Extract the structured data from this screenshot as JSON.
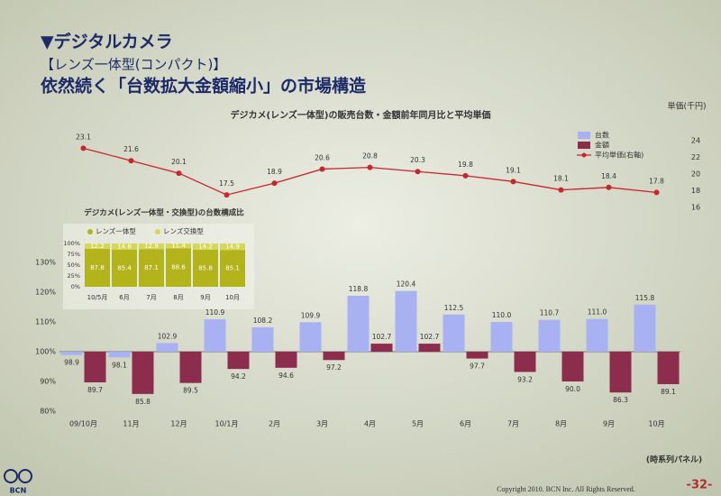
{
  "slide": {
    "title": "▼デジタルカメラ",
    "subtitle": "【レンズ一体型(コンパクト)】",
    "headline": "依然続く「台数拡大金額縮小」の市場構造",
    "note": "(時系列パネル)",
    "logo": "BCN",
    "copyright": "Copyright 2010. BCN Inc. All Rights Reserved.",
    "page": "-32-"
  },
  "chart_data": [
    {
      "type": "combo",
      "title": "デジカメ(レンズ一体型)の販売台数・金額前年同月比と平均単価",
      "y2label": "単価(千円)",
      "categories": [
        "09/10月",
        "11月",
        "12月",
        "10/1月",
        "2月",
        "3月",
        "4月",
        "5月",
        "6月",
        "7月",
        "8月",
        "9月",
        "10月"
      ],
      "series": [
        {
          "name": "台数",
          "type": "bar",
          "color": "#a8b2f2",
          "values": [
            98.9,
            98.1,
            102.9,
            110.9,
            108.2,
            109.9,
            118.8,
            120.4,
            112.5,
            110.0,
            110.7,
            111.0,
            115.8
          ],
          "value_labels": [
            "98.9",
            "98.1",
            "102.9",
            "110.9",
            "108.2",
            "109.9",
            "118.8",
            "120.4",
            "112.5",
            "110.0",
            "110.7",
            "111.0",
            "115.8"
          ]
        },
        {
          "name": "金額",
          "type": "bar",
          "color": "#8c2d4e",
          "values": [
            89.7,
            85.8,
            89.5,
            94.2,
            94.6,
            97.2,
            102.7,
            102.7,
            97.7,
            93.2,
            90.0,
            86.3,
            89.1
          ],
          "value_labels": [
            "89.7",
            "85.8",
            "89.5",
            "94.2",
            "94.6",
            "97.2",
            "102.7",
            "102.7",
            "97.7",
            "93.2",
            "90.0",
            "86.3",
            "89.1"
          ]
        },
        {
          "name": "平均単価(右軸)",
          "type": "line",
          "axis": "y2",
          "color": "#c8262c",
          "values": [
            23.1,
            21.6,
            20.1,
            17.5,
            18.9,
            20.6,
            20.8,
            20.3,
            19.8,
            19.1,
            18.1,
            18.4,
            17.8
          ]
        }
      ],
      "ylim": [
        80,
        130
      ],
      "yticks": [
        {
          "value": 80,
          "label": "80%"
        },
        {
          "value": 90,
          "label": "90%"
        },
        {
          "value": 100,
          "label": "100%"
        },
        {
          "value": 110,
          "label": "110%"
        },
        {
          "value": 120,
          "label": "120%"
        },
        {
          "value": 130,
          "label": "130%"
        }
      ],
      "baseline": 100,
      "y2lim": [
        16,
        24
      ],
      "y2ticks": [
        16,
        18,
        20,
        22,
        24
      ],
      "grid": false,
      "legend": "top-right"
    },
    {
      "type": "stacked_bar",
      "title": "デジカメ(レンズ一体型・交換型)の台数構成比",
      "categories": [
        "10/5月",
        "6月",
        "7月",
        "8月",
        "9月",
        "10月"
      ],
      "series": [
        {
          "name": "レンズ一体型",
          "color": "#b3b41c",
          "values": [
            87.8,
            85.4,
            87.1,
            88.6,
            85.8,
            85.1
          ]
        },
        {
          "name": "レンズ交換型",
          "color": "#d6d75a",
          "values": [
            12.2,
            14.6,
            12.9,
            11.4,
            14.2,
            14.9
          ]
        }
      ],
      "ylim": [
        0,
        100
      ],
      "yticks": [
        {
          "value": 0,
          "label": "0%"
        },
        {
          "value": 25,
          "label": "25%"
        },
        {
          "value": 50,
          "label": "50%"
        },
        {
          "value": 75,
          "label": "75%"
        },
        {
          "value": 100,
          "label": "100%"
        }
      ],
      "legend": "top"
    }
  ]
}
